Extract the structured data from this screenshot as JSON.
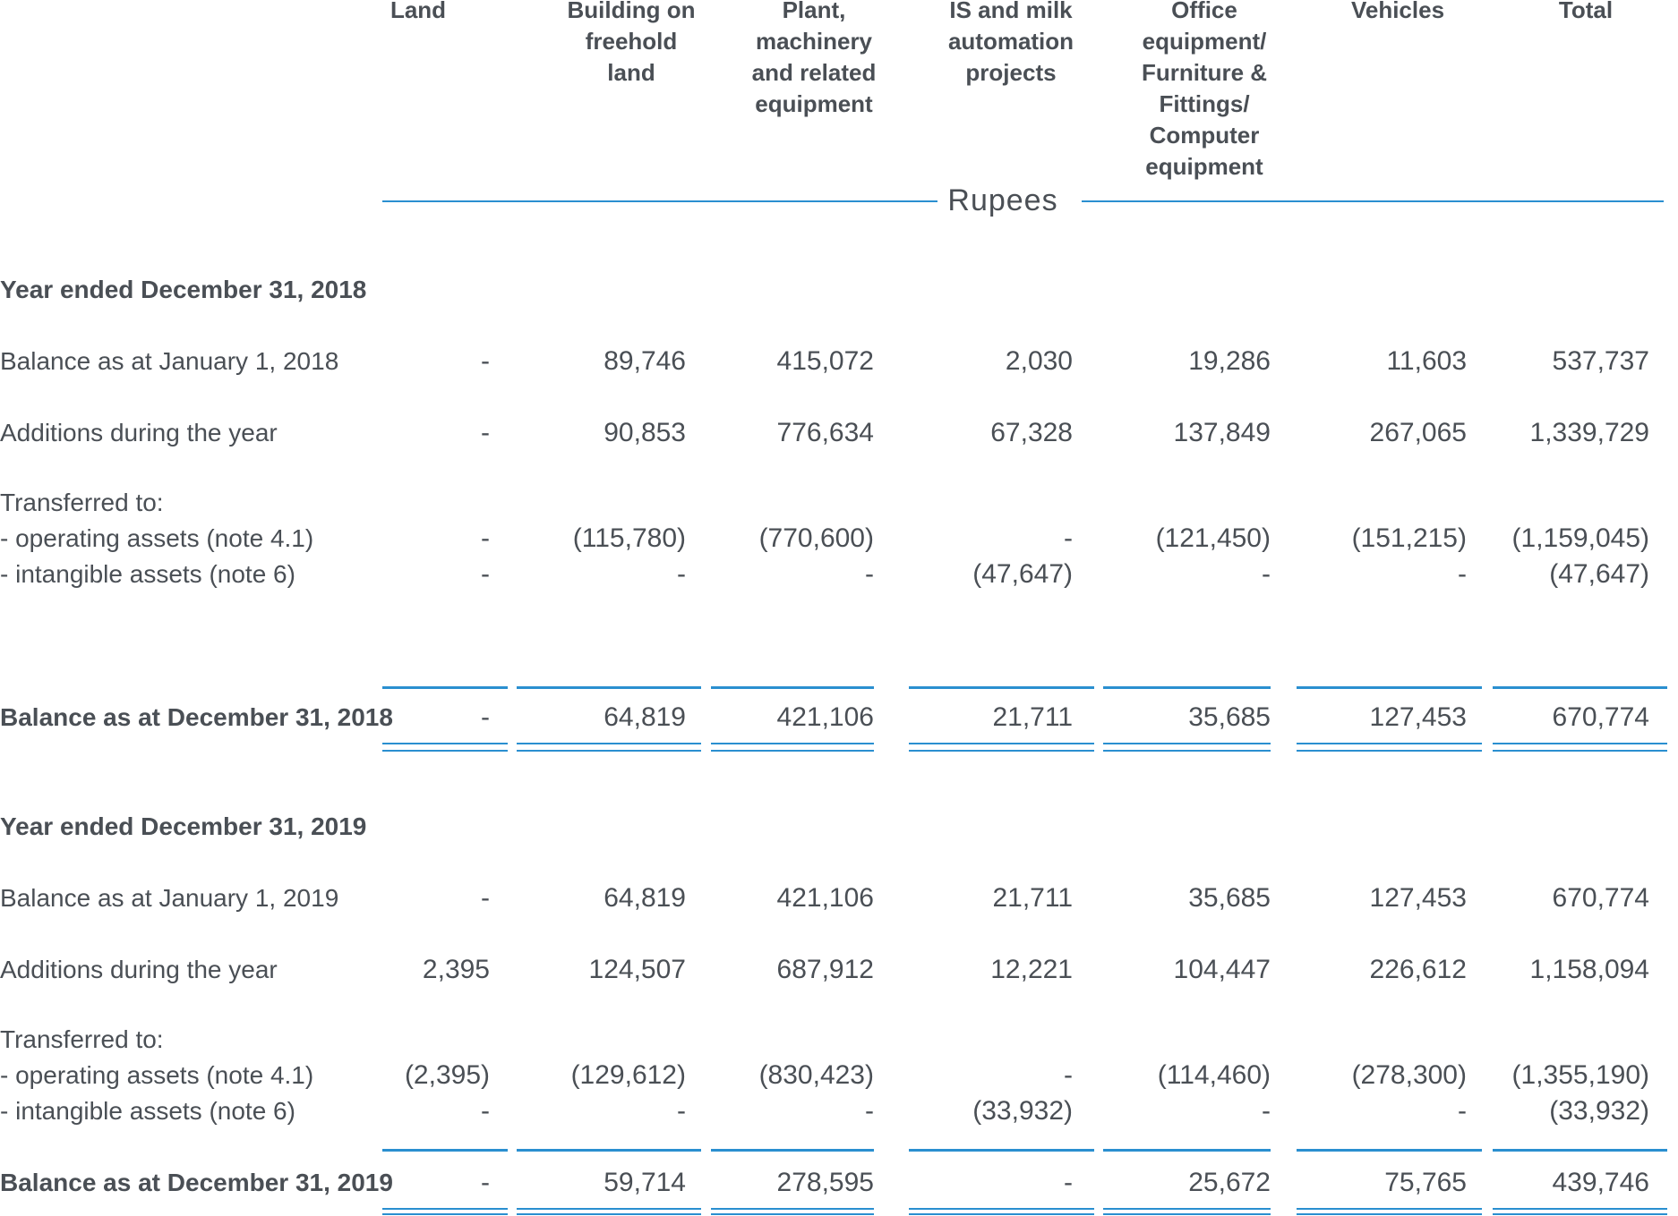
{
  "columns": [
    {
      "key": "land",
      "label": "Land"
    },
    {
      "key": "building",
      "label": "Building on\nfreehold\nland"
    },
    {
      "key": "plant",
      "label": "Plant,\nmachinery\nand related\nequipment"
    },
    {
      "key": "is_milk",
      "label": "IS and milk\nautomation\nprojects"
    },
    {
      "key": "office",
      "label": "Office\nequipment/\nFurniture &\nFittings/\nComputer\nequipment"
    },
    {
      "key": "vehicles",
      "label": "Vehicles"
    },
    {
      "key": "total",
      "label": "Total"
    }
  ],
  "currency_label": "Rupees",
  "sections": [
    {
      "title": "Year ended December 31, 2018",
      "opening": {
        "label": "Balance as at January 1, 2018",
        "values": [
          "-",
          "89,746",
          "415,072",
          "2,030",
          "19,286",
          "11,603",
          "537,737"
        ]
      },
      "additions": {
        "label": "Additions during the year",
        "values": [
          "-",
          "90,853",
          "776,634",
          "67,328",
          "137,849",
          "267,065",
          "1,339,729"
        ]
      },
      "transferred_heading": "Transferred to:",
      "to_operating": {
        "label": " - operating assets (note 4.1)",
        "values": [
          "-",
          "(115,780)",
          "(770,600)",
          "-",
          "(121,450)",
          "(151,215)",
          "(1,159,045)"
        ]
      },
      "to_intangible": {
        "label": " - intangible assets (note 6)",
        "values": [
          "-",
          "-",
          "-",
          "(47,647)",
          "-",
          "-",
          "(47,647)"
        ]
      },
      "closing": {
        "label": "Balance as at December 31, 2018",
        "values": [
          "-",
          "64,819",
          "421,106",
          "21,711",
          "35,685",
          "127,453",
          "670,774"
        ]
      }
    },
    {
      "title": "Year ended December 31, 2019",
      "opening": {
        "label": "Balance as at January 1, 2019",
        "values": [
          "-",
          "64,819",
          "421,106",
          "21,711",
          "35,685",
          "127,453",
          "670,774"
        ]
      },
      "additions": {
        "label": "Additions during the year",
        "values": [
          "2,395",
          "124,507",
          "687,912",
          "12,221",
          "104,447",
          "226,612",
          "1,158,094"
        ]
      },
      "transferred_heading": "Transferred to:",
      "to_operating": {
        "label": " - operating assets (note 4.1)",
        "values": [
          "(2,395)",
          "(129,612)",
          "(830,423)",
          "-",
          "(114,460)",
          "(278,300)",
          "(1,355,190)"
        ]
      },
      "to_intangible": {
        "label": " - intangible assets (note 6)",
        "values": [
          "-",
          "-",
          "-",
          "(33,932)",
          "-",
          "-",
          "(33,932)"
        ]
      },
      "closing": {
        "label": "Balance as at December 31, 2019",
        "values": [
          "-",
          "59,714",
          "278,595",
          "-",
          "25,672",
          "75,765",
          "439,746"
        ]
      }
    }
  ],
  "colors": {
    "text": "#4a4f55",
    "rule": "#2a8fd0"
  }
}
